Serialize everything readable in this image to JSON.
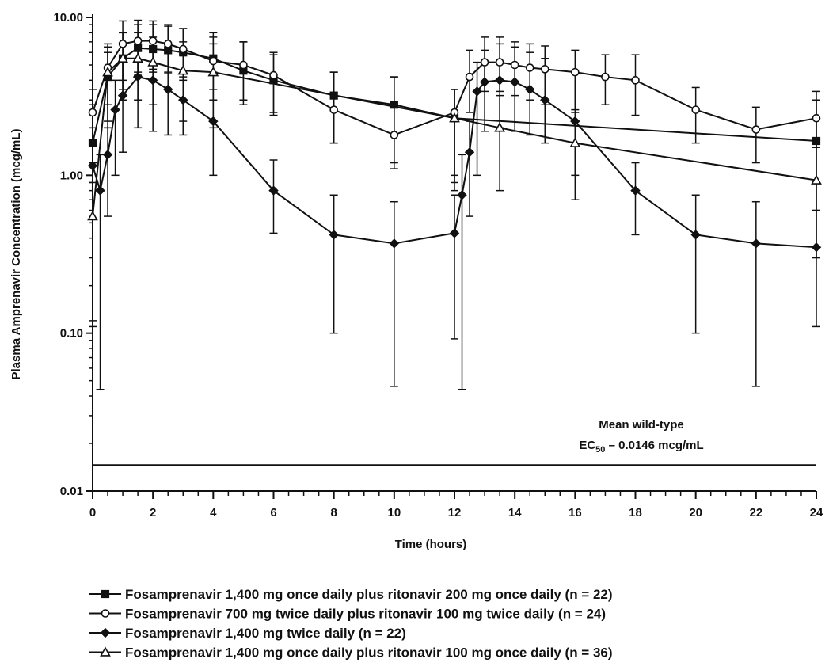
{
  "chart_data": {
    "type": "line",
    "xlabel": "Time (hours)",
    "ylabel": "Plasma Amprenavir Concentration (mcg/mL)",
    "yscale": "log",
    "xlim": [
      0,
      24
    ],
    "ylim": [
      0.01,
      10
    ],
    "x_ticks": [
      "0",
      "2",
      "4",
      "6",
      "8",
      "10",
      "12",
      "14",
      "16",
      "18",
      "20",
      "22",
      "24"
    ],
    "y_ticks": [
      "0.01",
      "0.10",
      "1.00",
      "10.00"
    ],
    "grid": false,
    "legend_position": "bottom",
    "annotation": {
      "line1": "Mean wild-type",
      "line2_prefix": "EC",
      "line2_sub": "50",
      "line2_suffix": " – 0.0146 mcg/mL",
      "value": 0.0146
    },
    "series": [
      {
        "name": "Fosamprenavir 1,400 mg once daily plus ritonavir 200 mg once daily (n = 22)",
        "marker": "square",
        "x": [
          0,
          0.5,
          1,
          1.5,
          2,
          2.5,
          3,
          4,
          5,
          6,
          8,
          10,
          12,
          24
        ],
        "y": [
          1.6,
          4.2,
          5.5,
          6.4,
          6.3,
          6.2,
          6.0,
          5.5,
          4.6,
          4.0,
          3.2,
          2.8,
          2.3,
          1.65
        ],
        "err_low": [
          0.9,
          2.0,
          3.5,
          4.3,
          4.5,
          4.4,
          4.2,
          3.5,
          3.0,
          2.5,
          1.6,
          1.2,
          0.8,
          0.6
        ],
        "err_high": [
          2.8,
          6.0,
          8.0,
          9.0,
          9.0,
          8.8,
          8.5,
          8.0,
          7.0,
          6.0,
          4.5,
          4.2,
          3.5,
          3.0
        ]
      },
      {
        "name": "Fosamprenavir 700 mg twice daily plus ritonavir 100 mg twice daily (n = 24)",
        "marker": "circle",
        "x": [
          0,
          0.5,
          1,
          1.5,
          2,
          2.5,
          3,
          4,
          5,
          6,
          8,
          10,
          12,
          12.5,
          13,
          13.5,
          14,
          14.5,
          15,
          16,
          17,
          18,
          20,
          22,
          24
        ],
        "y": [
          2.5,
          4.8,
          6.8,
          7.1,
          7.1,
          6.8,
          6.3,
          5.3,
          5.0,
          4.3,
          2.6,
          1.8,
          2.5,
          4.2,
          5.2,
          5.2,
          5.0,
          4.8,
          4.7,
          4.5,
          4.2,
          4.0,
          2.6,
          1.95,
          2.3
        ],
        "err_low": [
          1.2,
          2.8,
          4.0,
          4.5,
          4.7,
          4.5,
          4.0,
          3.0,
          2.8,
          2.4,
          1.6,
          1.1,
          1.0,
          2.5,
          3.4,
          3.4,
          3.2,
          3.0,
          2.8,
          2.6,
          2.8,
          2.4,
          1.6,
          1.2,
          1.5
        ],
        "err_high": [
          3.5,
          6.8,
          9.5,
          9.6,
          9.5,
          9.0,
          8.5,
          7.5,
          7.0,
          5.8,
          4.5,
          4.2,
          3.5,
          6.2,
          7.5,
          7.5,
          7.0,
          6.8,
          6.6,
          6.2,
          5.8,
          5.8,
          3.6,
          2.7,
          3.4
        ]
      },
      {
        "name": "Fosamprenavir 1,400 mg twice daily (n = 22)",
        "marker": "diamond",
        "x": [
          0,
          0.25,
          0.5,
          0.75,
          1,
          1.5,
          2,
          2.5,
          3,
          4,
          6,
          8,
          10,
          12,
          12.25,
          12.5,
          12.75,
          13,
          13.5,
          14,
          14.5,
          15,
          16,
          18,
          20,
          22,
          24
        ],
        "y": [
          1.15,
          0.8,
          1.35,
          2.6,
          3.2,
          4.2,
          4.0,
          3.5,
          3.0,
          2.2,
          0.8,
          0.42,
          0.37,
          0.43,
          0.75,
          1.4,
          3.4,
          3.9,
          4.0,
          3.9,
          3.5,
          3.0,
          2.2,
          0.8,
          0.42,
          0.37,
          0.35
        ],
        "err_low": [
          0.11,
          0.044,
          0.55,
          1.0,
          1.4,
          2.0,
          1.9,
          1.8,
          1.8,
          1.0,
          0.43,
          0.1,
          0.046,
          0.092,
          0.044,
          0.55,
          1.0,
          1.9,
          2.0,
          1.9,
          1.8,
          1.6,
          1.0,
          0.42,
          0.1,
          0.046,
          0.11
        ],
        "err_high": [
          1.6,
          1.35,
          2.0,
          4.0,
          5.5,
          6.8,
          6.5,
          6.2,
          5.8,
          4.5,
          1.25,
          0.75,
          0.68,
          0.75,
          1.35,
          2.2,
          5.2,
          6.2,
          6.8,
          6.5,
          6.0,
          5.5,
          4.5,
          1.2,
          0.75,
          0.68,
          0.6
        ]
      },
      {
        "name": "Fosamprenavir 1,400 mg once daily plus ritonavir 100 mg once daily (n = 36)",
        "marker": "triangle",
        "x": [
          0,
          0.5,
          1,
          1.5,
          2,
          3,
          4,
          12,
          13.5,
          16,
          24
        ],
        "y": [
          0.55,
          4.5,
          5.5,
          5.5,
          5.2,
          4.6,
          4.5,
          2.3,
          2.0,
          1.6,
          0.93
        ],
        "err_low": [
          0.12,
          2.2,
          3.0,
          3.0,
          2.8,
          2.2,
          2.0,
          0.9,
          0.8,
          0.7,
          0.3
        ],
        "err_high": [
          2.0,
          6.5,
          8.0,
          8.0,
          7.5,
          7.0,
          6.8,
          3.5,
          3.2,
          2.5,
          1.7
        ]
      }
    ]
  }
}
